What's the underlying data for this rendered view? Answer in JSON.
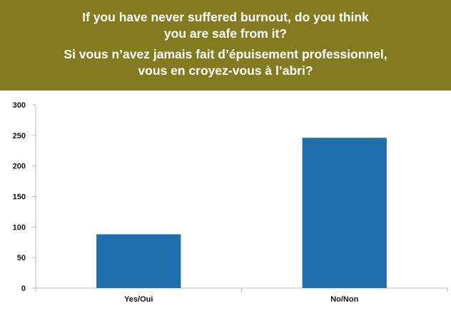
{
  "title": {
    "en_line1": "If you have never suffered burnout, do you think",
    "en_line2": "you are safe from it?",
    "fr_line1": "Si vous n’avez jamais fait d’épuisement professionnel,",
    "fr_line2": "vous en croyez-vous à l’abri?"
  },
  "colors": {
    "banner": "#847b20",
    "bar": "#1f6fae",
    "axis": "#b8b8b8"
  },
  "chart_data": {
    "type": "bar",
    "categories": [
      "Yes/Oui",
      "No/Non"
    ],
    "values": [
      88,
      246
    ],
    "ylim": [
      0,
      300
    ],
    "yticks": [
      0,
      50,
      100,
      150,
      200,
      250,
      300
    ],
    "grid": false,
    "legend": "none",
    "xlabel": "",
    "ylabel": ""
  }
}
